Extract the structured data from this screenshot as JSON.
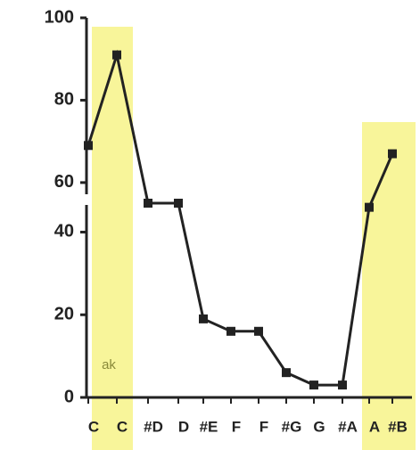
{
  "chart_data": {
    "type": "line",
    "categories": [
      "C",
      "C",
      "#D",
      "D",
      "#E",
      "F",
      "F",
      "#G",
      "G",
      "#A",
      "A",
      "#B"
    ],
    "values": [
      69,
      91,
      47,
      47,
      19,
      16,
      16,
      6,
      3,
      3,
      46,
      67
    ],
    "color": "#222222",
    "segments": [
      {
        "ylim": [
          0,
          47
        ],
        "yticks": [
          0,
          20,
          40
        ]
      },
      {
        "ylim": [
          55,
          100
        ],
        "yticks": [
          60,
          80,
          100
        ]
      }
    ],
    "annotation": "ak"
  }
}
